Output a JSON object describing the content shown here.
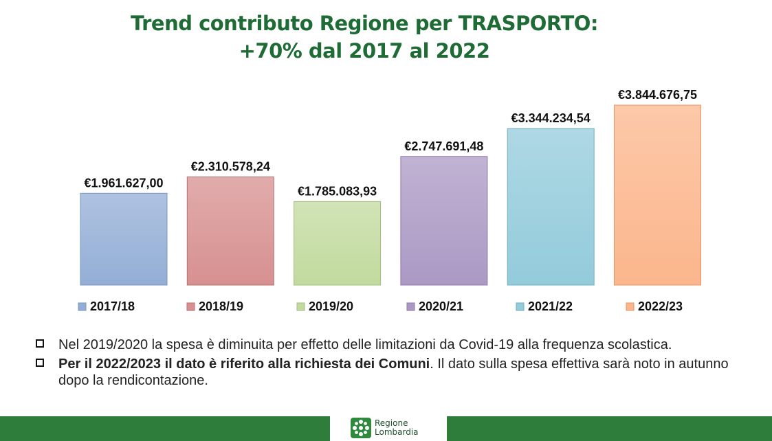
{
  "title": {
    "line1": "Trend contributo Regione per TRASPORTO:",
    "line2": "+70% dal 2017 al 2022"
  },
  "chart_data": {
    "type": "bar",
    "title": "Trend contributo Regione per TRASPORTO: +70% dal 2017 al 2022",
    "categories": [
      "2017/18",
      "2018/19",
      "2019/20",
      "2020/21",
      "2021/22",
      "2022/23"
    ],
    "values": [
      1961627.0,
      2310578.24,
      1785083.93,
      2747691.48,
      3344234.54,
      3844676.75
    ],
    "data_labels": [
      "€1.961.627,00",
      "€2.310.578,24",
      "€1.785.083,93",
      "€2.747.691,48",
      "€3.344.234,54",
      "€3.844.676,75"
    ],
    "colors": [
      "#93aed6",
      "#d79090",
      "#c2da9e",
      "#ab99c4",
      "#93cbdb",
      "#fbb68c"
    ],
    "border_colors": [
      "#7a94bb",
      "#b96f6f",
      "#a4bd80",
      "#8d79a8",
      "#71adbf",
      "#e0986c"
    ],
    "legend_position": "bottom",
    "ylim": [
      0,
      3844676.75
    ],
    "grid": false,
    "xlabel": "",
    "ylabel": ""
  },
  "notes": {
    "note1": "Nel 2019/2020 la spesa è diminuita per effetto delle limitazioni da Covid-19 alla frequenza scolastica.",
    "note2_bold": "Per il 2022/2023 il dato è riferito alla richiesta dei Comuni",
    "note2_rest": ". Il dato sulla spesa effettiva sarà noto in autunno dopo la rendicontazione."
  },
  "footer": {
    "logo_line1": "Regione",
    "logo_line2": "Lombardia",
    "color": "#2f7d3a"
  }
}
